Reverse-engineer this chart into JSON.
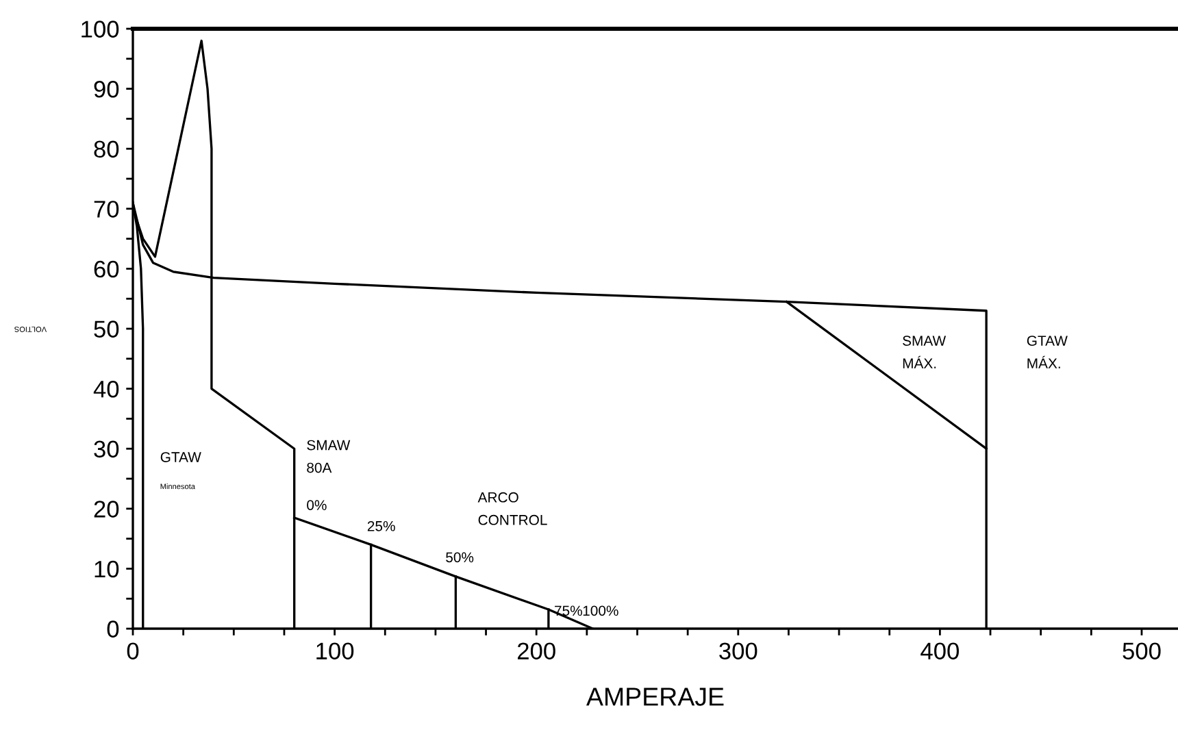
{
  "chart_data": {
    "type": "line",
    "xlabel": "AMPERAJE",
    "xlim": [
      0,
      518
    ],
    "ylim": [
      0,
      100
    ],
    "xticks": [
      0,
      {
        "value": 25,
        "label": null
      },
      {
        "value": 50,
        "label": null
      },
      {
        "value": 75,
        "label": null
      },
      100,
      {
        "value": 125,
        "label": null
      },
      {
        "value": 150,
        "label": null
      },
      {
        "value": 175,
        "label": null
      },
      200,
      {
        "value": 225,
        "label": null
      },
      {
        "value": 250,
        "label": null
      },
      {
        "value": 275,
        "label": null
      },
      300,
      {
        "value": 325,
        "label": null
      },
      {
        "value": 350,
        "label": null
      },
      {
        "value": 375,
        "label": null
      },
      400,
      {
        "value": 425,
        "label": null
      },
      {
        "value": 450,
        "label": null
      },
      {
        "value": 475,
        "label": null
      },
      500
    ],
    "yticks": [
      0,
      {
        "value": 5,
        "label": null
      },
      10,
      {
        "value": 15,
        "label": null
      },
      20,
      {
        "value": 25,
        "label": null
      },
      30,
      {
        "value": 35,
        "label": null
      },
      40,
      {
        "value": 45,
        "label": null
      },
      50,
      {
        "value": 55,
        "label": null
      },
      60,
      {
        "value": 65,
        "label": null
      },
      70,
      {
        "value": 75,
        "label": null
      },
      80,
      {
        "value": 85,
        "label": null
      },
      90,
      {
        "value": 95,
        "label": null
      },
      100
    ],
    "grid": false,
    "legend": false,
    "marker": "none",
    "line_style": "solid",
    "series": [
      {
        "color": "#000000",
        "x": [
          0,
          2,
          4,
          5,
          5
        ],
        "values": [
          71,
          67,
          60,
          50,
          0
        ]
      },
      {
        "color": "#000000",
        "x": [
          0,
          5,
          11,
          34,
          37,
          39,
          39,
          80,
          80
        ],
        "values": [
          70,
          65,
          62,
          98,
          90,
          80,
          40,
          30,
          0
        ]
      },
      {
        "color": "#000000",
        "x": [
          0,
          5,
          10,
          20,
          40,
          100,
          200,
          324,
          423,
          423
        ],
        "values": [
          71,
          64,
          61,
          59.5,
          58.5,
          57.5,
          56,
          54.5,
          53,
          0
        ]
      },
      {
        "color": "#000000",
        "x": [
          324,
          423
        ],
        "values": [
          54.5,
          30
        ]
      },
      {
        "color": "#000000",
        "x": [
          80,
          118,
          160,
          206,
          228
        ],
        "values": [
          18.5,
          14,
          8.7,
          3.2,
          0
        ]
      },
      {
        "color": "#000000",
        "x": [
          118,
          118
        ],
        "values": [
          14,
          0
        ]
      },
      {
        "color": "#000000",
        "x": [
          160,
          160
        ],
        "values": [
          8.7,
          0
        ]
      },
      {
        "color": "#000000",
        "x": [
          206,
          206
        ],
        "values": [
          3.2,
          0
        ]
      }
    ],
    "annotations": [
      "GTAW",
      "Minnesota",
      "SMAW\n80A",
      "0%",
      "25%",
      "50%",
      "ARCO\nCONTROL",
      "75%",
      "100%",
      "SMAW\nMÁX.",
      "GTAW\nMÁX.",
      "VOLTIOS"
    ]
  }
}
